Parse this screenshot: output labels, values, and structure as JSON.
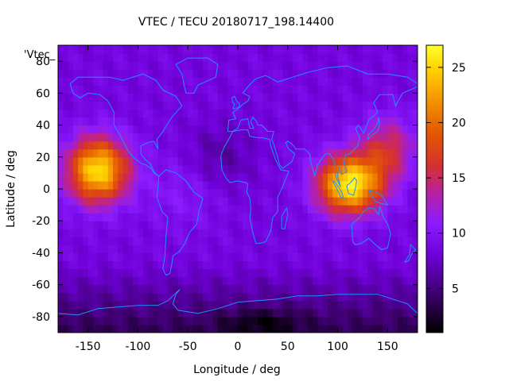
{
  "chart_data": {
    "type": "heatmap",
    "title": "VTEC / TECU 20180717_198.14400",
    "xlabel": "Longitude / deg",
    "ylabel": "Latitude / deg",
    "legend_label": "'Vtec_",
    "xlim": [
      -180,
      180
    ],
    "ylim": [
      -90,
      90
    ],
    "x_ticks": [
      -150,
      -100,
      -50,
      0,
      50,
      100,
      150
    ],
    "y_ticks": [
      -80,
      -60,
      -40,
      -20,
      0,
      20,
      40,
      60,
      80
    ],
    "colorbar": {
      "range": [
        1,
        27
      ],
      "ticks": [
        5,
        10,
        15,
        20,
        25
      ],
      "palette": "black-purple-red-orange-yellow"
    },
    "peaks": [
      {
        "lon": -140,
        "lat": 15,
        "vtec": 26
      },
      {
        "lon": 110,
        "lat": 5,
        "vtec": 27
      }
    ]
  },
  "colors": {
    "coastline": "#1e90ff",
    "axis": "#000000"
  }
}
